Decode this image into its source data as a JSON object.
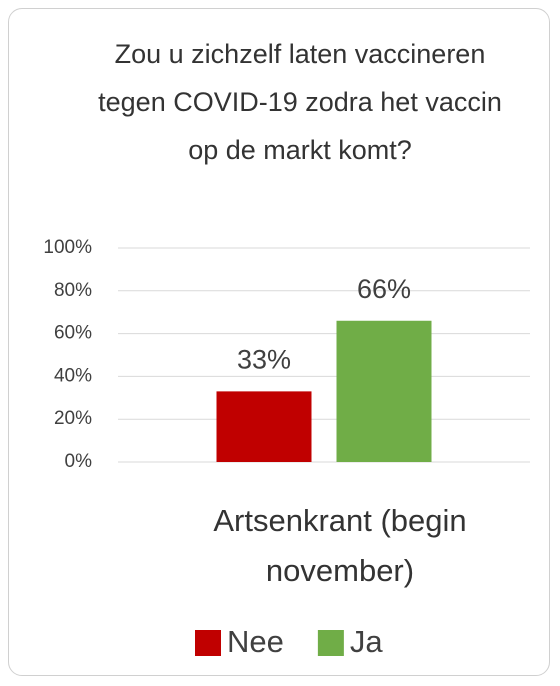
{
  "chart_data": {
    "type": "bar",
    "title": "Zou u zichzelf laten vaccineren tegen COVID-19 zodra het vaccin op de markt komt?",
    "categories": [
      "Artsenkrant (begin november)"
    ],
    "series": [
      {
        "name": "Nee",
        "color": "#c00000",
        "values": [
          33
        ],
        "value_labels": [
          "33%"
        ]
      },
      {
        "name": "Ja",
        "color": "#70ad47",
        "values": [
          66
        ],
        "value_labels": [
          "66%"
        ]
      }
    ],
    "ylim": [
      0,
      100
    ],
    "yticks": [
      {
        "value": 0,
        "label": "0%"
      },
      {
        "value": 20,
        "label": "20%"
      },
      {
        "value": 40,
        "label": "40%"
      },
      {
        "value": 60,
        "label": "60%"
      },
      {
        "value": 80,
        "label": "80%"
      },
      {
        "value": 100,
        "label": "100%"
      }
    ],
    "grid": true,
    "legend": "bottom"
  }
}
